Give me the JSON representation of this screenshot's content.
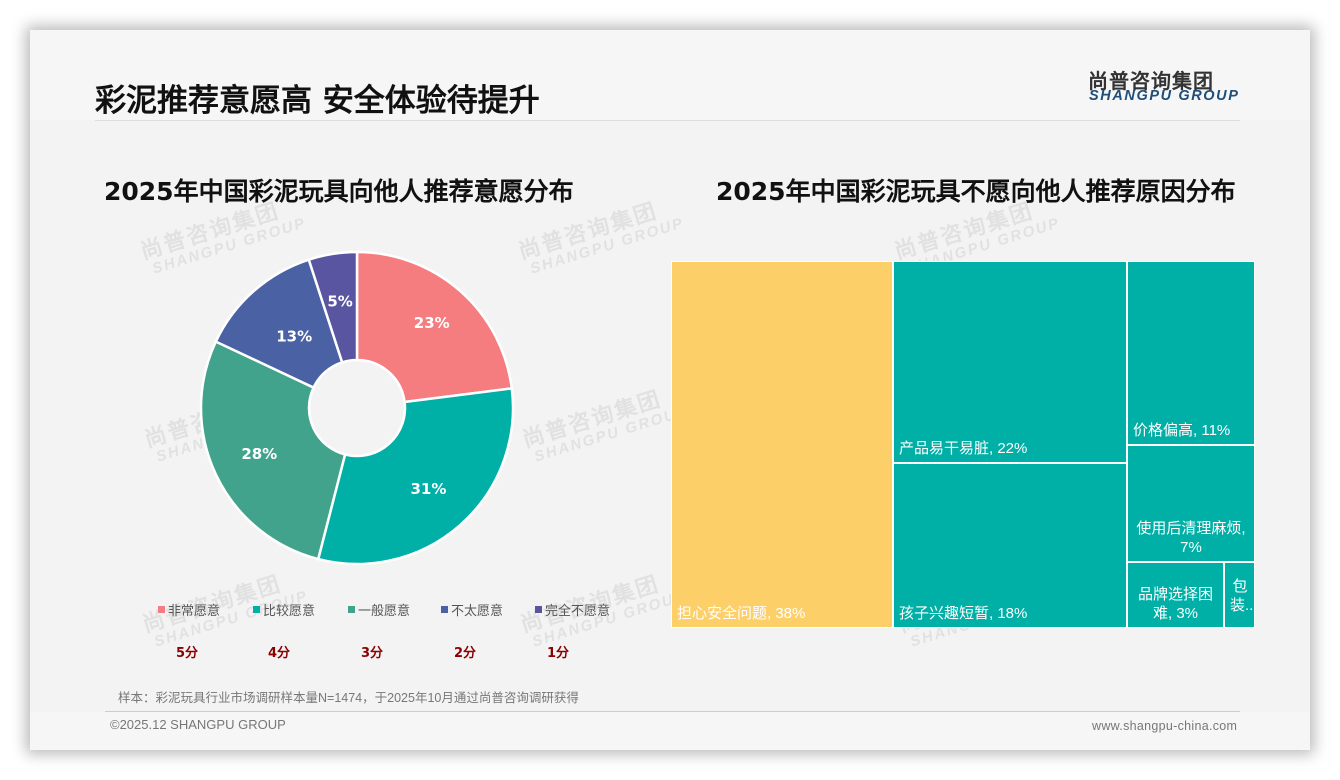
{
  "header": {
    "title": "彩泥推荐意愿高 安全体验待提升",
    "logo_cn": "尚普咨询集团",
    "logo_en": "SHANGPU GROUP"
  },
  "watermark": {
    "cn": "尚普咨询集团",
    "en": "SHANGPU GROUP"
  },
  "left_chart": {
    "title": "2025年中国彩泥玩具向他人推荐意愿分布",
    "legend": [
      {
        "label": "非常愿意",
        "color": "#f57c7f",
        "score": "5分"
      },
      {
        "label": "比较愿意",
        "color": "#00afa6",
        "score": "4分"
      },
      {
        "label": "一般愿意",
        "color": "#41a38c",
        "score": "3分"
      },
      {
        "label": "不太愿意",
        "color": "#4a62a4",
        "score": "2分"
      },
      {
        "label": "完全不愿意",
        "color": "#5a55a0",
        "score": "1分"
      }
    ],
    "slice_labels": [
      "23%",
      "31%",
      "28%",
      "13%",
      "5%"
    ]
  },
  "right_chart": {
    "title": "2025年中国彩泥玩具不愿向他人推荐原因分布",
    "cells": [
      {
        "label": "担心安全问题, 38%"
      },
      {
        "label": "产品易干易脏, 22%"
      },
      {
        "label": "孩子兴趣短暂, 18%"
      },
      {
        "label": "价格偏高, 11%"
      },
      {
        "label": "使用后清理麻烦, 7%"
      },
      {
        "label": "品牌选择困难, 3%"
      },
      {
        "label": "包装..."
      }
    ]
  },
  "footer": {
    "sample_note": "样本：彩泥玩具行业市场调研样本量N=1474，于2025年10月通过尚普咨询调研获得",
    "copyright": "©2025.12 SHANGPU GROUP",
    "website": "www.shangpu-china.com"
  },
  "chart_data": [
    {
      "type": "pie",
      "title": "2025年中国彩泥玩具向他人推荐意愿分布",
      "categories": [
        "非常愿意",
        "比较愿意",
        "一般愿意",
        "不太愿意",
        "完全不愿意"
      ],
      "scores": [
        "5分",
        "4分",
        "3分",
        "2分",
        "1分"
      ],
      "values": [
        23,
        31,
        28,
        13,
        5
      ],
      "unit": "%",
      "colors": [
        "#f57c7f",
        "#00afa6",
        "#41a38c",
        "#4a62a4",
        "#5a55a0"
      ],
      "donut": true,
      "legend_position": "bottom"
    },
    {
      "type": "treemap",
      "title": "2025年中国彩泥玩具不愿向他人推荐原因分布",
      "categories": [
        "担心安全问题",
        "产品易干易脏",
        "孩子兴趣短暂",
        "价格偏高",
        "使用后清理麻烦",
        "品牌选择困难",
        "包装..."
      ],
      "values": [
        38,
        22,
        18,
        11,
        7,
        3,
        null
      ],
      "unit": "%",
      "colors": {
        "highlight": "#fdcf69",
        "default": "#00afa6"
      }
    }
  ]
}
